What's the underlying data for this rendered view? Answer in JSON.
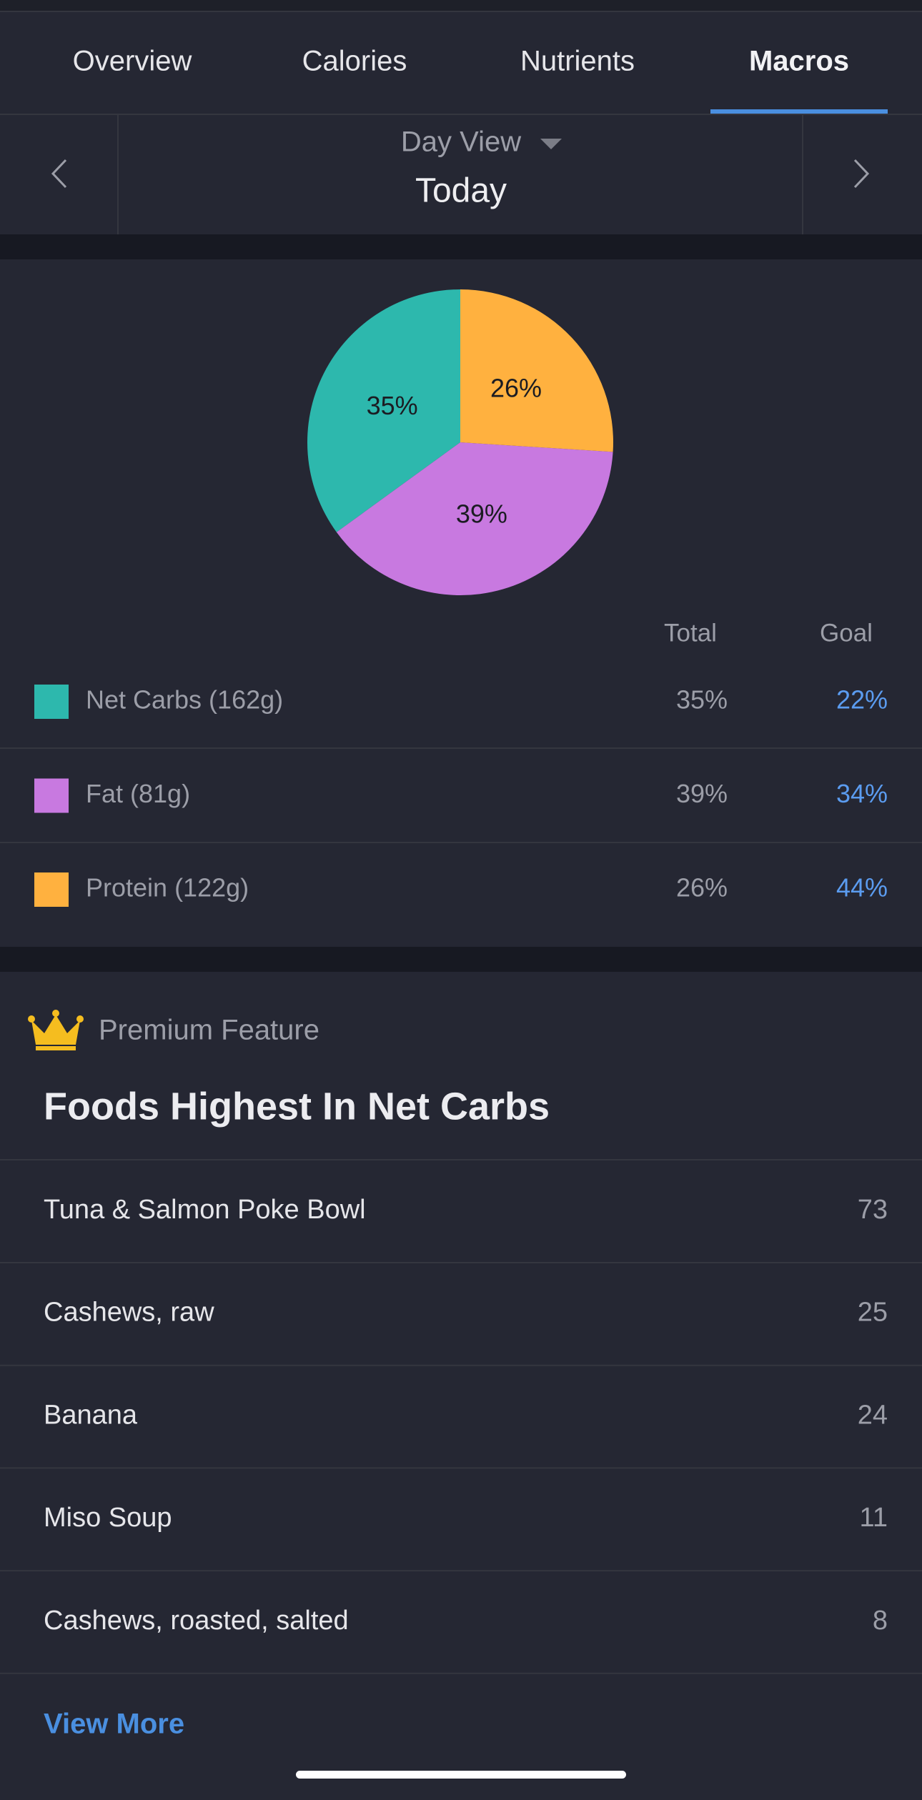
{
  "tabs": [
    "Overview",
    "Calories",
    "Nutrients",
    "Macros"
  ],
  "date_nav": {
    "view": "Day View",
    "date": "Today"
  },
  "chart_data": {
    "type": "pie",
    "categories": [
      "Net Carbs (162g)",
      "Fat (81g)",
      "Protein (122g)"
    ],
    "values": [
      35,
      39,
      26
    ],
    "value_labels": [
      "35%",
      "39%",
      "26%"
    ],
    "colors": [
      "#2db8ad",
      "#c879e0",
      "#ffb13f"
    ],
    "columns": [
      "Total",
      "Goal"
    ],
    "goals": [
      "22%",
      "34%",
      "44%"
    ]
  },
  "premium": {
    "label": "Premium Feature",
    "title": "Foods Highest In Net Carbs",
    "items": [
      {
        "name": "Tuna & Salmon Poke Bowl",
        "value": 73
      },
      {
        "name": "Cashews, raw",
        "value": 25
      },
      {
        "name": "Banana",
        "value": 24
      },
      {
        "name": "Miso Soup",
        "value": 11
      },
      {
        "name": "Cashews, roasted, salted",
        "value": 8
      }
    ],
    "link": "View More"
  }
}
